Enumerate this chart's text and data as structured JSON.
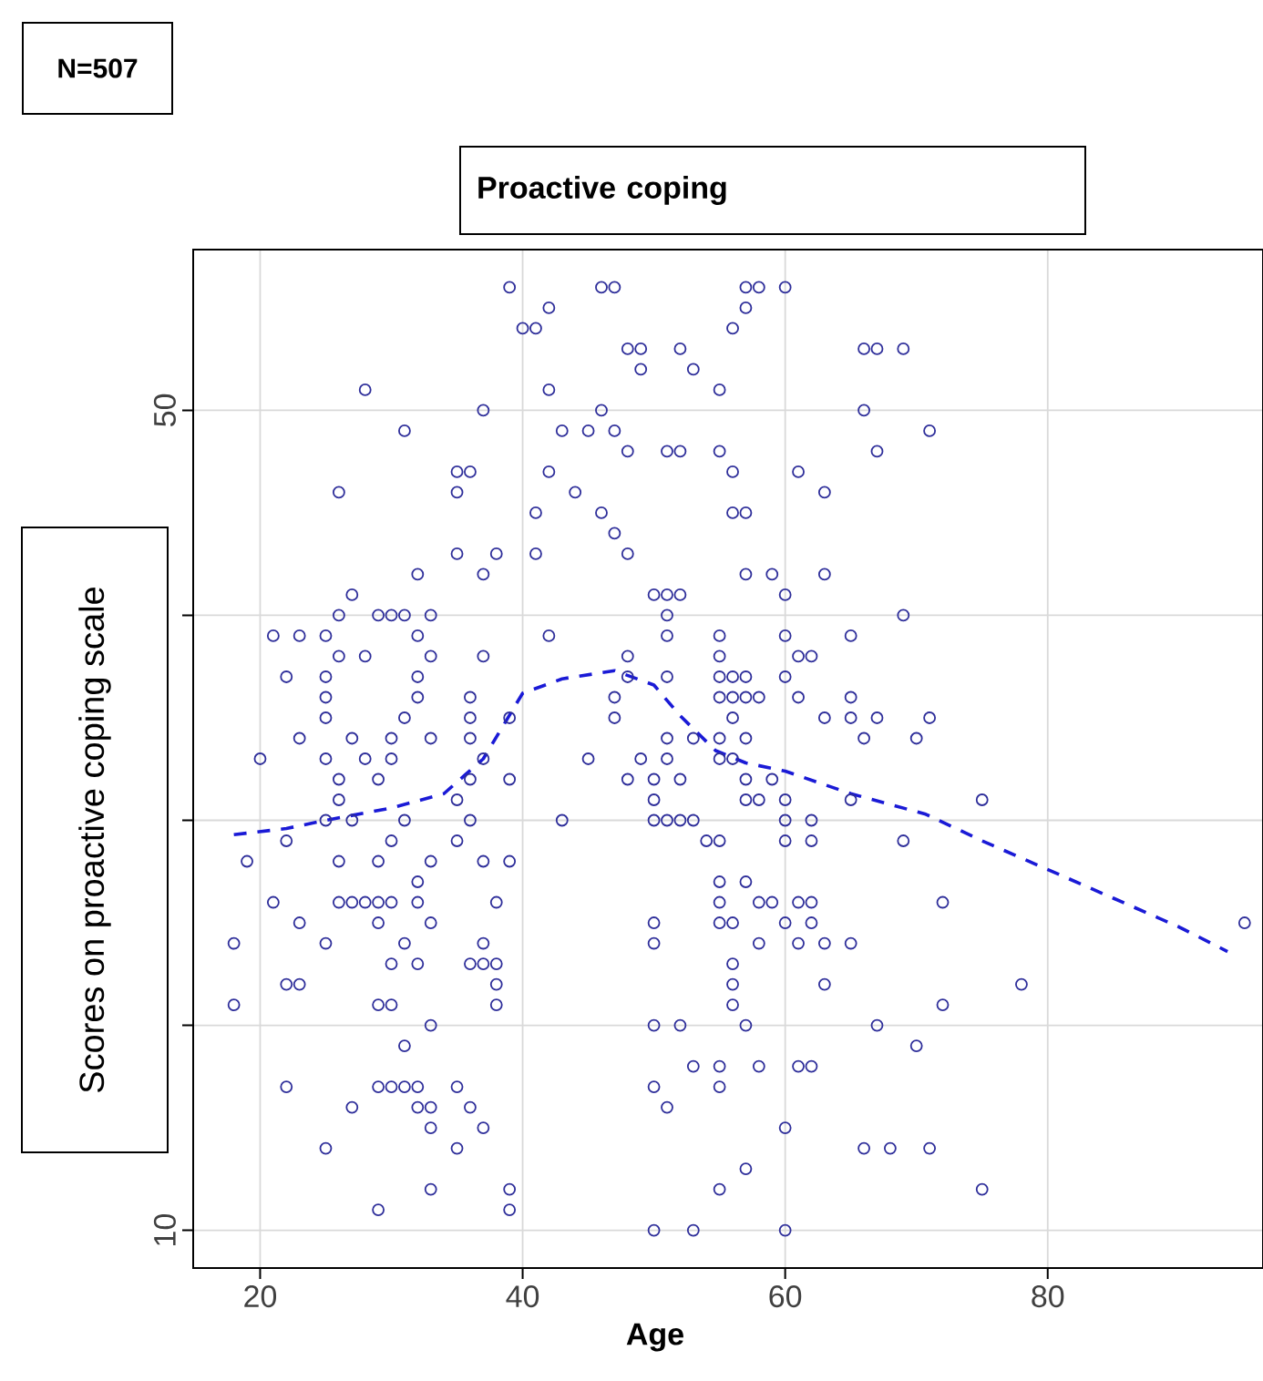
{
  "chart_data": {
    "type": "scatter",
    "title": "Proactive coping",
    "xlabel": "Age",
    "ylabel": "Scores on proactive coping scale",
    "annotations": [
      "N=507"
    ],
    "xlim": [
      14.9,
      96.4
    ],
    "ylim": [
      8.16,
      57.84
    ],
    "xticks": [
      20,
      40,
      60,
      80
    ],
    "yticks": [
      10,
      {
        "value": 20,
        "label": null
      },
      {
        "value": 30,
        "label": null
      },
      {
        "value": 40,
        "label": null
      },
      50
    ],
    "grid": true,
    "marker": "circle",
    "series": [
      {
        "color": "#2e2e9a",
        "x": [
          39,
          46,
          47,
          42,
          40,
          41,
          48,
          49,
          52,
          49,
          53,
          28,
          42,
          37,
          46,
          31,
          43,
          45,
          47,
          48,
          51,
          52,
          26,
          35,
          36,
          35,
          42,
          44,
          41,
          46,
          47,
          48,
          35,
          38,
          41,
          32,
          37,
          27,
          50,
          51,
          52,
          26,
          29,
          30,
          31,
          33,
          51,
          21,
          23,
          25,
          32,
          42,
          51,
          26,
          28,
          33,
          37,
          48,
          22,
          25,
          32,
          48,
          51,
          57,
          58,
          60,
          57,
          56,
          66,
          67,
          69,
          55,
          66,
          71,
          67,
          55,
          56,
          61,
          63,
          56,
          57,
          57,
          59,
          63,
          60,
          69,
          55,
          60,
          65,
          55,
          61,
          62,
          55,
          56,
          57,
          60,
          55,
          56,
          57,
          58,
          61,
          65,
          56,
          63,
          65,
          67,
          71,
          25,
          32,
          36,
          47,
          25,
          31,
          36,
          39,
          47,
          23,
          27,
          30,
          33,
          36,
          51,
          53,
          20,
          25,
          28,
          30,
          37,
          45,
          49,
          51,
          26,
          29,
          36,
          39,
          48,
          50,
          52,
          26,
          35,
          50,
          25,
          27,
          31,
          36,
          43,
          50,
          51,
          52,
          53,
          22,
          30,
          35,
          19,
          26,
          29,
          33,
          37,
          39,
          32,
          21,
          26,
          27,
          28,
          29,
          30,
          32,
          38,
          23,
          29,
          33,
          50,
          18,
          25,
          31,
          37,
          50,
          30,
          32,
          36,
          37,
          38,
          22,
          23,
          38,
          18,
          29,
          30,
          38,
          33,
          50,
          52,
          31,
          53,
          22,
          29,
          30,
          31,
          32,
          35,
          50,
          27,
          32,
          33,
          36,
          51,
          33,
          37,
          25,
          35,
          33,
          39,
          29,
          39,
          50,
          53,
          55,
          57,
          66,
          70,
          55,
          56,
          57,
          59,
          57,
          58,
          60,
          65,
          75,
          60,
          62,
          54,
          55,
          60,
          62,
          69,
          55,
          57,
          55,
          58,
          59,
          61,
          62,
          72,
          55,
          56,
          60,
          62,
          95,
          58,
          61,
          63,
          65,
          56,
          56,
          63,
          78,
          56,
          72,
          57,
          67,
          70,
          55,
          58,
          61,
          62,
          55,
          60,
          66,
          68,
          71,
          57,
          55,
          75,
          60
        ],
        "values": [
          56,
          56,
          56,
          55,
          54,
          54,
          53,
          53,
          53,
          52,
          52,
          51,
          51,
          50,
          50,
          49,
          49,
          49,
          49,
          48,
          48,
          48,
          46,
          47,
          47,
          46,
          47,
          46,
          45,
          45,
          44,
          43,
          43,
          43,
          43,
          42,
          42,
          41,
          41,
          41,
          41,
          40,
          40,
          40,
          40,
          40,
          40,
          39,
          39,
          39,
          39,
          39,
          39,
          38,
          38,
          38,
          38,
          38,
          37,
          37,
          37,
          37,
          37,
          56,
          56,
          56,
          55,
          54,
          53,
          53,
          53,
          51,
          50,
          49,
          48,
          48,
          47,
          47,
          46,
          45,
          45,
          42,
          42,
          42,
          41,
          40,
          39,
          39,
          39,
          38,
          38,
          38,
          37,
          37,
          37,
          37,
          36,
          36,
          36,
          36,
          36,
          36,
          35,
          35,
          35,
          35,
          35,
          36,
          36,
          36,
          36,
          35,
          35,
          35,
          35,
          35,
          34,
          34,
          34,
          34,
          34,
          34,
          34,
          33,
          33,
          33,
          33,
          33,
          33,
          33,
          33,
          32,
          32,
          32,
          32,
          32,
          32,
          32,
          31,
          31,
          31,
          30,
          30,
          30,
          30,
          30,
          30,
          30,
          30,
          30,
          29,
          29,
          29,
          28,
          28,
          28,
          28,
          28,
          28,
          27,
          26,
          26,
          26,
          26,
          26,
          26,
          26,
          26,
          25,
          25,
          25,
          25,
          24,
          24,
          24,
          24,
          24,
          23,
          23,
          23,
          23,
          23,
          22,
          22,
          22,
          21,
          21,
          21,
          21,
          20,
          20,
          20,
          19,
          18,
          17,
          17,
          17,
          17,
          17,
          17,
          17,
          16,
          16,
          16,
          16,
          16,
          15,
          15,
          14,
          14,
          12,
          12,
          11,
          11,
          10,
          10,
          34,
          34,
          34,
          34,
          33,
          33,
          32,
          32,
          31,
          31,
          31,
          31,
          31,
          30,
          30,
          29,
          29,
          29,
          29,
          29,
          27,
          27,
          26,
          26,
          26,
          26,
          26,
          26,
          25,
          25,
          25,
          25,
          25,
          24,
          24,
          24,
          24,
          23,
          22,
          22,
          22,
          21,
          21,
          20,
          20,
          19,
          18,
          18,
          18,
          18,
          17,
          15,
          14,
          14,
          14,
          13,
          12,
          12,
          10
        ]
      },
      {
        "type": "line",
        "color": "#1a1ad6",
        "line_style": "dashed",
        "marker": "none",
        "x": [
          18,
          22,
          25,
          30,
          34,
          37,
          40,
          43,
          47,
          50,
          52,
          54.7,
          57,
          60,
          65,
          70.7,
          75,
          80,
          85,
          90,
          93.7
        ],
        "values": [
          29.3,
          29.6,
          30.0,
          30.6,
          31.3,
          33.0,
          36.2,
          36.9,
          37.3,
          36.6,
          35.1,
          33.4,
          32.8,
          32.4,
          31.3,
          30.3,
          29.0,
          27.6,
          26.2,
          24.8,
          23.6
        ]
      }
    ]
  }
}
